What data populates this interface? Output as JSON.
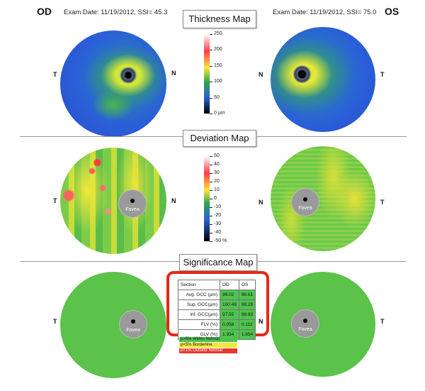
{
  "header": {
    "od_label": "OD",
    "os_label": "OS",
    "od_exam": "Exam Date: 11/19/2012, SSI= 45.3",
    "os_exam": "Exam Date: 11/19/2012, SSI= 75.0"
  },
  "sections": {
    "thickness_title": "Thickness Map",
    "deviation_title": "Deviation Map",
    "significance_title": "Significance Map"
  },
  "orientation": {
    "temporal": "T",
    "nasal": "N"
  },
  "fovea_label": "Fovea",
  "thickness_scale": {
    "labels": [
      "250",
      "200",
      "150",
      "100",
      "50",
      "0 µm"
    ],
    "colors": [
      "#ffffff",
      "#ff3a4a",
      "#ffe63a",
      "#2ea84a",
      "#2a5fd8",
      "#000000"
    ]
  },
  "deviation_scale": {
    "labels": [
      "50",
      "40",
      "30",
      "20",
      "10",
      "0",
      "-10",
      "-20",
      "-30",
      "-40",
      "-50 %"
    ],
    "colors": [
      "#ffffff",
      "#ff3a4a",
      "#ffe63a",
      "#2ea84a",
      "#2a5fd8",
      "#000000"
    ]
  },
  "gcc_table": {
    "headers": [
      "Section",
      "OD",
      "OS"
    ],
    "rows": [
      {
        "label": "Avg. GCC (µm)",
        "od": "99.02",
        "os": "98.61"
      },
      {
        "label": "Sup. GCC(µm)",
        "od": "100.49",
        "os": "98.29"
      },
      {
        "label": "Inf. GCC(µm)",
        "od": "97.55",
        "os": "98.93"
      },
      {
        "label": "FLV (%)",
        "od": "0.058",
        "os": "0.112"
      },
      {
        "label": "GLV (%)",
        "od": "1.934",
        "os": "1.654"
      }
    ]
  },
  "significance_legend": [
    {
      "label": "p>5% Within Normal",
      "color": "#4ec44e"
    },
    {
      "label": "p<5% Borderline",
      "color": "#f2e83a"
    },
    {
      "label": "p<1% Outside Normal",
      "color": "#e8392e"
    }
  ],
  "colors": {
    "normal_green": "#5bc24a",
    "highlight_red": "#e02a1a"
  }
}
